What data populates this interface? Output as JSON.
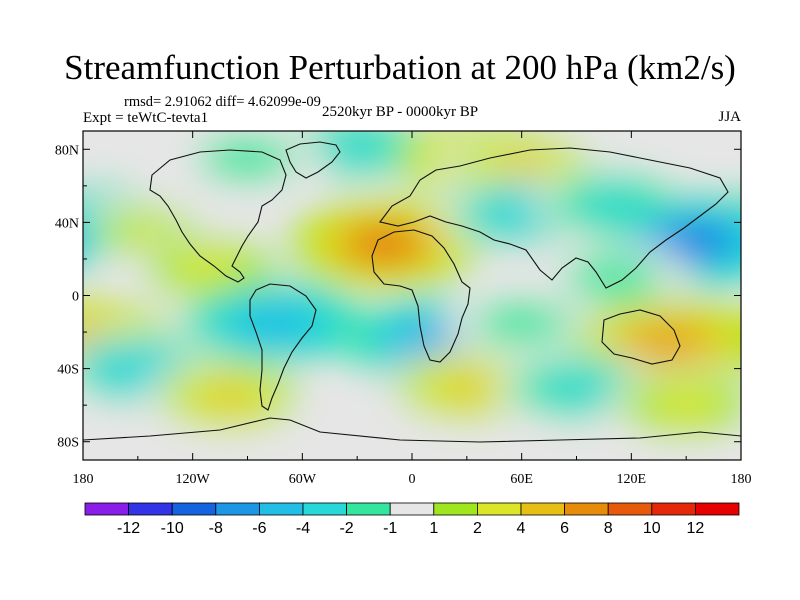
{
  "chart_data": {
    "type": "heatmap",
    "title": "Streamfunction Perturbation at 200 hPa (km2/s)",
    "stats_line": "rmsd= 2.91062 diff= 4.62099e-09",
    "experiment": "Expt = teWtC-tevta1",
    "period": "2520kyr BP - 0000kyr BP",
    "season": "JJA",
    "xlabel": "",
    "ylabel": "",
    "xlim": [
      -180,
      180
    ],
    "ylim": [
      -90,
      90
    ],
    "x_ticks": [
      {
        "value": -180,
        "label": "180"
      },
      {
        "value": -120,
        "label": "120W"
      },
      {
        "value": -60,
        "label": "60W"
      },
      {
        "value": 0,
        "label": "0"
      },
      {
        "value": 60,
        "label": "60E"
      },
      {
        "value": 120,
        "label": "120E"
      },
      {
        "value": 180,
        "label": "180"
      }
    ],
    "y_ticks": [
      {
        "value": 80,
        "label": "80N"
      },
      {
        "value": 40,
        "label": "40N"
      },
      {
        "value": 0,
        "label": "0"
      },
      {
        "value": -40,
        "label": "40S"
      },
      {
        "value": -80,
        "label": "80S"
      }
    ],
    "contour_levels": [
      -12,
      -10,
      -8,
      -6,
      -4,
      -2,
      -1,
      1,
      2,
      4,
      6,
      8,
      10,
      12
    ],
    "colorbar_labels": [
      "-12",
      "-10",
      "-8",
      "-6",
      "-4",
      "-2",
      "-1",
      "1",
      "2",
      "4",
      "6",
      "8",
      "10",
      "12"
    ],
    "colors": [
      "#8a1ee8",
      "#3232e6",
      "#1464e0",
      "#1e96e6",
      "#23bee6",
      "#28d7d7",
      "#32e6a0",
      "#e6e6e6",
      "#a0e61e",
      "#dce628",
      "#e6be14",
      "#e68c0a",
      "#e65a0a",
      "#e6280a",
      "#e60000"
    ],
    "field_features": [
      {
        "lon": -170,
        "lat": 42,
        "value": -5
      },
      {
        "lon": -145,
        "lat": 35,
        "value": 2
      },
      {
        "lon": -110,
        "lat": 15,
        "value": 2.5
      },
      {
        "lon": -30,
        "lat": 82,
        "value": -3
      },
      {
        "lon": -90,
        "lat": 75,
        "value": -2
      },
      {
        "lon": -15,
        "lat": 28,
        "value": 8.5
      },
      {
        "lon": 40,
        "lat": 75,
        "value": 5
      },
      {
        "lon": 60,
        "lat": 70,
        "value": 4
      },
      {
        "lon": 60,
        "lat": 45,
        "value": -3.5
      },
      {
        "lon": 110,
        "lat": 50,
        "value": -3
      },
      {
        "lon": 155,
        "lat": 30,
        "value": -9
      },
      {
        "lon": 110,
        "lat": 10,
        "value": -2
      },
      {
        "lon": -178,
        "lat": -25,
        "value": 6
      },
      {
        "lon": -150,
        "lat": -40,
        "value": -4
      },
      {
        "lon": -100,
        "lat": -55,
        "value": 4
      },
      {
        "lon": -75,
        "lat": -15,
        "value": -6
      },
      {
        "lon": 15,
        "lat": -25,
        "value": -7
      },
      {
        "lon": 60,
        "lat": -15,
        "value": -2
      },
      {
        "lon": 30,
        "lat": -50,
        "value": 4
      },
      {
        "lon": 140,
        "lat": -25,
        "value": 7
      },
      {
        "lon": 90,
        "lat": -50,
        "value": -3
      },
      {
        "lon": 150,
        "lat": -60,
        "value": 3
      }
    ]
  }
}
